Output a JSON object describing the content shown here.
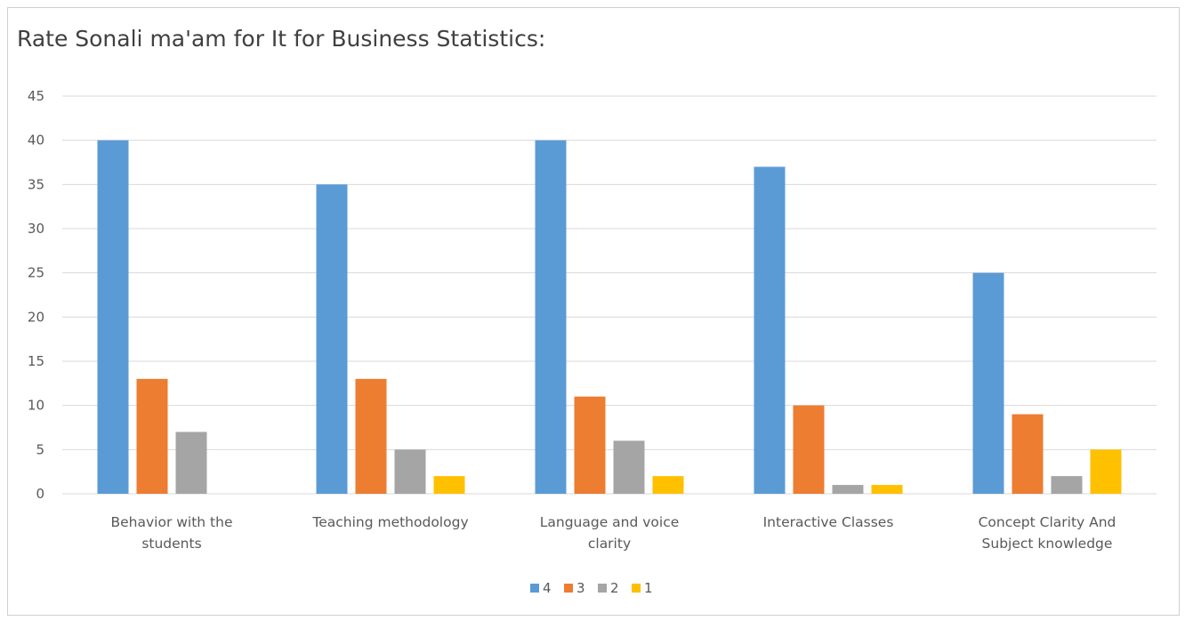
{
  "chart_data": {
    "type": "bar",
    "title": "Rate Sonali ma'am for It for Business Statistics:",
    "categories": [
      [
        "Behavior with the",
        "students"
      ],
      [
        "Teaching methodology"
      ],
      [
        "Language and voice",
        "clarity"
      ],
      [
        "Interactive Classes"
      ],
      [
        "Concept Clarity And",
        "Subject knowledge"
      ]
    ],
    "series": [
      {
        "name": "4",
        "color": "#5B9BD5",
        "values": [
          40,
          35,
          40,
          37,
          25
        ]
      },
      {
        "name": "3",
        "color": "#ED7D31",
        "values": [
          13,
          13,
          11,
          10,
          9
        ]
      },
      {
        "name": "2",
        "color": "#A5A5A5",
        "values": [
          7,
          5,
          6,
          1,
          2
        ]
      },
      {
        "name": "1",
        "color": "#FFC000",
        "values": [
          0,
          2,
          2,
          1,
          5
        ]
      }
    ],
    "yticks": [
      "0",
      "5",
      "10",
      "15",
      "20",
      "25",
      "30",
      "35",
      "40",
      "45"
    ],
    "ylim": [
      0,
      45
    ],
    "grid": true,
    "legend": "bottom"
  }
}
